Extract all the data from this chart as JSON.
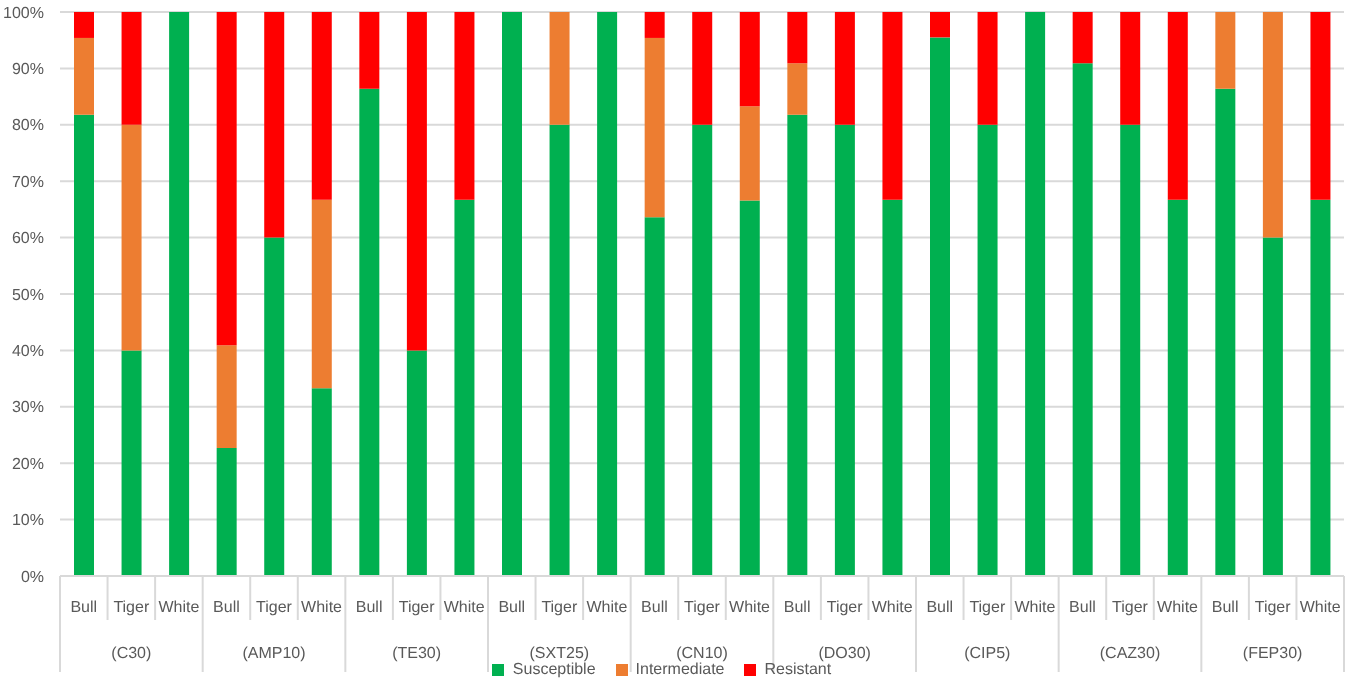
{
  "chart_data": {
    "type": "bar",
    "stacked": true,
    "categories": [
      "Bull",
      "Tiger",
      "White",
      "Bull",
      "Tiger",
      "White",
      "Bull",
      "Tiger",
      "White",
      "Bull",
      "Tiger",
      "White",
      "Bull",
      "Tiger",
      "White",
      "Bull",
      "Tiger",
      "White",
      "Bull",
      "Tiger",
      "White",
      "Bull",
      "Tiger",
      "White",
      "Bull",
      "Tiger",
      "White"
    ],
    "annotations": [
      "(C30)",
      "(AMP10)",
      "(TE30)",
      "(SXT25)",
      "(CN10)",
      "(DO30)",
      "(CIP5)",
      "(CAZ30)",
      "(FEP30)"
    ],
    "series": [
      {
        "name": "Susceptible",
        "color": "#00b050",
        "values": [
          81.8,
          40,
          100,
          22.7,
          60,
          33.3,
          86.4,
          40,
          66.7,
          100,
          80,
          100,
          63.6,
          80,
          66.6,
          81.8,
          80,
          66.7,
          95.5,
          80,
          100,
          90.9,
          80,
          66.7,
          86.4,
          60,
          66.7
        ]
      },
      {
        "name": "Intermediate",
        "color": "#ed7d31",
        "values": [
          13.6,
          40,
          0,
          18.2,
          0,
          33.4,
          0,
          0,
          0,
          0,
          20,
          0,
          31.8,
          0,
          16.7,
          9.1,
          0,
          0,
          0,
          0,
          0,
          0,
          0,
          0,
          13.6,
          40,
          0
        ]
      },
      {
        "name": "Resistant",
        "color": "#ff0000",
        "values": [
          4.6,
          20,
          0,
          59.1,
          40,
          33.3,
          13.6,
          60,
          33.3,
          0,
          0,
          0,
          4.6,
          20,
          16.7,
          9.1,
          20,
          33.3,
          4.5,
          20,
          0,
          9.1,
          20,
          33.3,
          0,
          0,
          33.3
        ]
      }
    ],
    "ylim": [
      0,
      100
    ],
    "yticks": [
      {
        "value": 0,
        "label": "0%"
      },
      {
        "value": 10,
        "label": "10%"
      },
      {
        "value": 20,
        "label": "20%"
      },
      {
        "value": 30,
        "label": "30%"
      },
      {
        "value": 40,
        "label": "40%"
      },
      {
        "value": 50,
        "label": "50%"
      },
      {
        "value": 60,
        "label": "60%"
      },
      {
        "value": 70,
        "label": "70%"
      },
      {
        "value": 80,
        "label": "80%"
      },
      {
        "value": 90,
        "label": "90%"
      },
      {
        "value": 100,
        "label": "100%"
      }
    ],
    "grid": "y",
    "legend": "bottom"
  }
}
